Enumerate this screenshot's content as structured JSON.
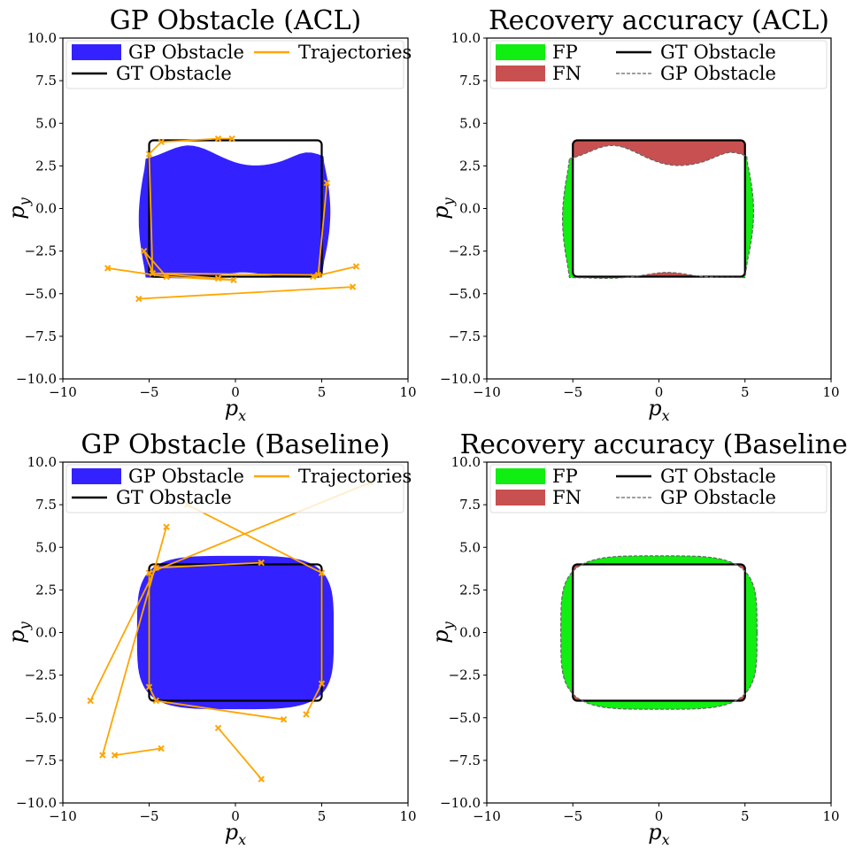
{
  "colors": {
    "gp_fill": "#3322ff",
    "gt_line": "#000000",
    "trajectory": "#ffa500",
    "fp": "#11ee11",
    "fn": "#c85050",
    "gp_outline": "#666666"
  },
  "chart_data": [
    {
      "type": "scatter",
      "title": "GP Obstacle (ACL)",
      "xlabel": "p_x",
      "ylabel": "p_y",
      "xlim": [
        -10,
        10
      ],
      "ylim": [
        -10,
        10
      ],
      "xticks": [
        "−10",
        "−5",
        "0",
        "5",
        "10"
      ],
      "yticks": [
        "−10.0",
        "−7.5",
        "−5.0",
        "−2.5",
        "0.0",
        "2.5",
        "5.0",
        "7.5",
        "10.0"
      ],
      "legend": [
        "GP Obstacle",
        "Trajectories",
        "GT Obstacle"
      ],
      "gt_box": [
        -5,
        -4,
        5,
        4
      ],
      "gp_shape": "acl",
      "trajectories": [
        [
          [
            -0.2,
            4.1
          ],
          [
            -1.0,
            4.1
          ],
          [
            -4.3,
            3.9
          ],
          [
            -5.0,
            3.2
          ],
          [
            -4.8,
            -3.8
          ],
          [
            -1.0,
            -4.1
          ],
          [
            -0.1,
            -4.2
          ],
          [
            -4.0,
            -4.0
          ],
          [
            -5.3,
            -2.5
          ],
          [
            -4.8,
            -3.8
          ],
          [
            4.8,
            -3.9
          ],
          [
            5.3,
            1.5
          ]
        ],
        [
          [
            -7.4,
            -3.5
          ],
          [
            -4.0,
            -4.0
          ]
        ],
        [
          [
            7.0,
            -3.4
          ],
          [
            4.5,
            -4.0
          ]
        ],
        [
          [
            -5.6,
            -5.3
          ],
          [
            6.8,
            -4.6
          ]
        ]
      ]
    },
    {
      "type": "area",
      "title": "Recovery accuracy (ACL)",
      "xlabel": "p_x",
      "ylabel": "p_y",
      "xlim": [
        -10,
        10
      ],
      "ylim": [
        -10,
        10
      ],
      "xticks": [
        "−10",
        "−5",
        "0",
        "5",
        "10"
      ],
      "yticks": [
        "−10.0",
        "−7.5",
        "−5.0",
        "−2.5",
        "0.0",
        "2.5",
        "5.0",
        "7.5",
        "10.0"
      ],
      "legend": [
        "FP",
        "GT Obstacle",
        "FN",
        "GP Obstacle"
      ],
      "gt_box": [
        -5,
        -4,
        5,
        4
      ],
      "gp_shape": "acl",
      "trajectories": []
    },
    {
      "type": "scatter",
      "title": "GP Obstacle (Baseline)",
      "xlabel": "p_x",
      "ylabel": "p_y",
      "xlim": [
        -10,
        10
      ],
      "ylim": [
        -10,
        10
      ],
      "xticks": [
        "−10",
        "−5",
        "0",
        "5",
        "10"
      ],
      "yticks": [
        "−10.0",
        "−7.5",
        "−5.0",
        "−2.5",
        "0.0",
        "2.5",
        "5.0",
        "7.5",
        "10.0"
      ],
      "legend": [
        "GP Obstacle",
        "Trajectories",
        "GT Obstacle"
      ],
      "gt_box": [
        -5,
        -4,
        5,
        4
      ],
      "gp_shape": "baseline",
      "trajectories": [
        [
          [
            -8.4,
            -4.0
          ],
          [
            -4.6,
            3.8
          ],
          [
            1.5,
            4.1
          ]
        ],
        [
          [
            -7.7,
            -7.2
          ],
          [
            -4.0,
            6.2
          ]
        ],
        [
          [
            7.8,
            8.8
          ],
          [
            -5.0,
            3.5
          ],
          [
            -5.0,
            -3.2
          ],
          [
            -4.6,
            -4.0
          ],
          [
            2.8,
            -5.1
          ]
        ],
        [
          [
            -2.8,
            7.5
          ],
          [
            5.0,
            3.5
          ],
          [
            5.0,
            -3.0
          ],
          [
            4.1,
            -4.8
          ]
        ],
        [
          [
            -7.0,
            -7.2
          ],
          [
            -4.3,
            -6.8
          ]
        ],
        [
          [
            -1.0,
            -5.6
          ],
          [
            1.5,
            -8.6
          ]
        ]
      ]
    },
    {
      "type": "area",
      "title": "Recovery accuracy (Baseline)",
      "xlabel": "p_x",
      "ylabel": "p_y",
      "xlim": [
        -10,
        10
      ],
      "ylim": [
        -10,
        10
      ],
      "xticks": [
        "−10",
        "−5",
        "0",
        "5",
        "10"
      ],
      "yticks": [
        "−10.0",
        "−7.5",
        "−5.0",
        "−2.5",
        "0.0",
        "2.5",
        "5.0",
        "7.5",
        "10.0"
      ],
      "legend": [
        "FP",
        "GT Obstacle",
        "FN",
        "GP Obstacle"
      ],
      "gt_box": [
        -5,
        -4,
        5,
        4
      ],
      "gp_shape": "baseline",
      "trajectories": []
    }
  ]
}
